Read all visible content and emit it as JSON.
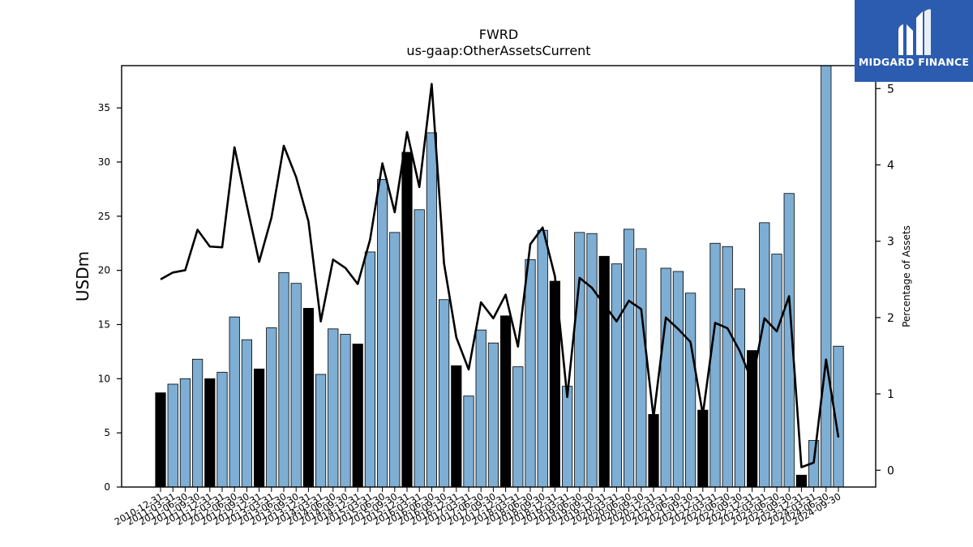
{
  "chart_data": {
    "type": "bar",
    "title": "FWRD",
    "subtitle": "us-gaap:OtherAssetsCurrent",
    "ylabel": "USDm",
    "y2label": "Percentage of Assets",
    "ylim": [
      0,
      38.9
    ],
    "y2lim": [
      -0.22,
      5.3
    ],
    "yticks": [
      0,
      5,
      10,
      15,
      20,
      25,
      30,
      35
    ],
    "y2ticks": [
      0,
      1,
      2,
      3,
      4,
      5
    ],
    "grid": false,
    "categories": [
      "2010-12-31",
      "2011-03-31",
      "2011-06-30",
      "2011-09-30",
      "2011-12-31",
      "2012-03-31",
      "2012-06-30",
      "2012-09-30",
      "2012-12-31",
      "2013-03-31",
      "2013-06-30",
      "2013-09-30",
      "2013-12-31",
      "2014-03-31",
      "2014-06-30",
      "2014-09-30",
      "2014-12-31",
      "2015-03-31",
      "2015-06-30",
      "2015-09-30",
      "2015-12-31",
      "2016-03-31",
      "2016-06-30",
      "2016-09-30",
      "2016-12-31",
      "2017-03-31",
      "2017-06-30",
      "2017-09-30",
      "2017-12-31",
      "2018-03-31",
      "2018-06-30",
      "2018-09-30",
      "2018-12-31",
      "2019-03-31",
      "2019-06-30",
      "2019-09-30",
      "2019-12-31",
      "2020-03-31",
      "2020-06-30",
      "2020-09-30",
      "2020-12-31",
      "2021-03-31",
      "2021-06-30",
      "2021-09-30",
      "2021-12-31",
      "2022-03-31",
      "2022-06-30",
      "2022-09-30",
      "2022-12-31",
      "2023-03-31",
      "2023-06-30",
      "2023-09-30",
      "2023-12-31",
      "2024-03-31",
      "2024-06-30",
      "2024-09-30"
    ],
    "xtick_labels": [
      "2010-12-31",
      "2011-03-31",
      "2011-06-30",
      "2011-09-30",
      "2011-12-31",
      "2012-03-31",
      "2012-06-30",
      "2012-09-30",
      "2012-12-31",
      "2013-03-31",
      "2013-06-30",
      "2013-09-30",
      "2013-12-31",
      "2014-03-31",
      "2014-06-30",
      "2014-09-30",
      "2014-12-31",
      "2015-03-31",
      "2015-06-30",
      "2015-09-30",
      "2015-12-31",
      "2016-03-31",
      "2016-06-30",
      "2016-09-30",
      "2016-12-31",
      "2017-03-31",
      "2017-06-30",
      "2017-09-30",
      "2017-12-31",
      "2018-03-31",
      "2018-06-30",
      "2018-09-30",
      "2018-12-31",
      "2019-03-31",
      "2019-06-30",
      "2019-09-30",
      "2019-12-31",
      "2020-03-31",
      "2020-06-30",
      "2020-09-30",
      "2020-12-31",
      "2021-03-31",
      "2021-06-30",
      "2021-09-30",
      "2021-12-31",
      "2022-03-31",
      "2022-06-30",
      "2022-09-30",
      "2022-12-31",
      "2023-03-31",
      "2023-06-30",
      "2023-09-30",
      "2023-12-31",
      "2024-03-31",
      "2024-06-30",
      "2024-09-30"
    ],
    "bar_colors": {
      "q4": "#000000",
      "other": "#7eaed3"
    },
    "series": [
      {
        "type": "bar",
        "axis": "left",
        "values": [
          8.7,
          9.5,
          10.0,
          11.8,
          10.0,
          10.6,
          15.7,
          13.6,
          10.9,
          14.7,
          19.8,
          18.8,
          16.5,
          10.4,
          14.6,
          14.1,
          13.2,
          21.7,
          28.4,
          23.5,
          30.9,
          25.6,
          32.7,
          17.3,
          11.2,
          8.4,
          14.5,
          13.3,
          15.8,
          11.1,
          21.0,
          23.7,
          19.0,
          9.3,
          23.5,
          23.4,
          21.3,
          20.6,
          23.8,
          22.0,
          6.7,
          20.2,
          19.9,
          17.9,
          7.1,
          22.5,
          22.2,
          18.3,
          12.6,
          24.4,
          21.5,
          27.1,
          1.1,
          4.3,
          39.0,
          13.0
        ]
      },
      {
        "type": "line",
        "axis": "right",
        "color": "#000000",
        "values": [
          2.5,
          2.59,
          2.62,
          3.15,
          2.93,
          2.92,
          4.23,
          3.47,
          2.73,
          3.31,
          4.25,
          3.84,
          3.26,
          1.95,
          2.76,
          2.65,
          2.44,
          3.02,
          4.02,
          3.38,
          4.43,
          3.71,
          5.06,
          2.71,
          1.74,
          1.32,
          2.2,
          1.99,
          2.3,
          1.62,
          2.96,
          3.18,
          2.54,
          0.96,
          2.52,
          2.39,
          2.17,
          1.95,
          2.22,
          2.11,
          0.69,
          2.0,
          1.85,
          1.68,
          0.73,
          1.93,
          1.86,
          1.56,
          1.16,
          1.99,
          1.82,
          2.28,
          0.04,
          0.1,
          1.45,
          0.43
        ]
      }
    ]
  },
  "logo": {
    "text": "MIDGARD FINANCE",
    "color": "#2b5cb0"
  }
}
